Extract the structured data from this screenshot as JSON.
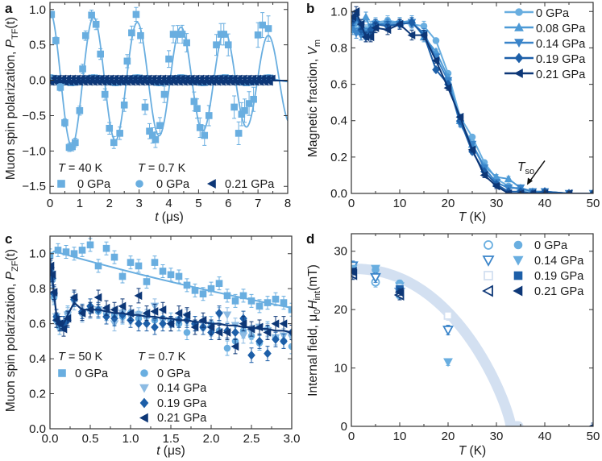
{
  "colors": {
    "p0": "#69aee0",
    "p008": "#4d9ad6",
    "p014": "#3a84c9",
    "p019": "#1d5fa8",
    "p021": "#0d3777",
    "band": "#d3e0f1",
    "axis": "#333333"
  },
  "chart_data": [
    {
      "id": "a",
      "type": "line",
      "panel_label": "a",
      "xlabel": {
        "var": "t",
        "suffix": " (μs)"
      },
      "ylabel": {
        "prefix": "Muon spin polarization, ",
        "var": "P",
        "sub": "TF",
        "suffix": "(t)"
      },
      "xlim": [
        0,
        8
      ],
      "ylim": [
        -1.6,
        1.1
      ],
      "xticks": [
        0,
        1,
        2,
        3,
        4,
        5,
        6,
        7,
        8
      ],
      "xtick_labels": [
        "0",
        "1",
        "2",
        "3",
        "4",
        "5",
        "6",
        "7",
        "8"
      ],
      "yticks": [
        1.0,
        0.5,
        0.0,
        -0.5,
        -1.0,
        -1.5
      ],
      "ytick_labels": [
        "1.0",
        "0.5",
        "0.0",
        "−0.5",
        "−1.0",
        "−1.5"
      ],
      "legend": {
        "group1": "= 40 K",
        "group2": "= 0.7 K",
        "T": "T",
        "items": [
          "0 GPa",
          "0 GPa",
          "0.21 GPa"
        ]
      },
      "series": [
        {
          "name": "T = 40 K, 0 GPa",
          "marker": "square",
          "color": "p0",
          "x": [
            0.05,
            0.2,
            0.35,
            0.5,
            0.65,
            0.75,
            0.85,
            1.0,
            1.1,
            1.2,
            1.4,
            1.55,
            1.7,
            1.85,
            2.0,
            2.15,
            2.35,
            2.5,
            2.6,
            2.75,
            2.9,
            3.05,
            3.2,
            3.35,
            3.45,
            3.55,
            3.7,
            3.85,
            4.0,
            4.15,
            4.3,
            4.45,
            4.6,
            4.85,
            4.95,
            5.05,
            5.2,
            5.35,
            5.6,
            5.75,
            5.85,
            6.0,
            6.2,
            6.35,
            6.45,
            6.55,
            6.7,
            6.85,
            7.0,
            7.15,
            7.35
          ],
          "y": [
            0.93,
            0.56,
            -0.1,
            -0.6,
            -0.95,
            -0.94,
            -0.88,
            -0.43,
            0.16,
            0.63,
            0.92,
            0.79,
            0.37,
            -0.2,
            -0.68,
            -0.88,
            -0.75,
            -0.35,
            0.27,
            0.67,
            0.93,
            0.63,
            -0.38,
            -0.72,
            -0.78,
            -0.84,
            -0.64,
            -0.2,
            0.3,
            0.65,
            0.65,
            0.65,
            0.53,
            -0.3,
            -0.4,
            -0.67,
            -0.78,
            -0.5,
            0.5,
            0.65,
            0.65,
            0.5,
            -0.38,
            -0.75,
            -0.48,
            -0.43,
            -0.33,
            -0.27,
            0.64,
            0.78,
            0.73
          ],
          "fit": {
            "amplitude": 0.97,
            "period": 1.47,
            "decay_rate": 0.058
          }
        },
        {
          "name": "T = 0.7 K, 0 GPa",
          "marker": "circle",
          "color": "p0",
          "model": {
            "amplitude": 0.045,
            "period": 1.47,
            "tmax": 7.5,
            "step": 0.1
          }
        },
        {
          "name": "T = 0.7 K, 0.21 GPa",
          "marker": "tri-left",
          "color": "p021",
          "model": {
            "amplitude": 0.03,
            "period": 0.16,
            "tmax": 7.5,
            "step": 0.08
          }
        }
      ]
    },
    {
      "id": "b",
      "type": "line",
      "panel_label": "b",
      "xlabel": {
        "var": "T",
        "suffix": " (K)"
      },
      "ylabel": {
        "prefix": "Magnetic fraction, ",
        "var": "V",
        "sub": "m",
        "suffix": ""
      },
      "xlim": [
        0,
        50
      ],
      "ylim": [
        0,
        1.05
      ],
      "xticks": [
        0,
        10,
        20,
        30,
        40,
        50
      ],
      "xtick_labels": [
        "0",
        "10",
        "20",
        "30",
        "40",
        "50"
      ],
      "yticks": [
        0,
        0.2,
        0.4,
        0.6,
        0.8,
        1.0
      ],
      "ytick_labels": [
        "0.0",
        "0.2",
        "0.4",
        "0.6",
        "0.8",
        "1.0"
      ],
      "annotation": {
        "var": "T",
        "sub": "so",
        "x": 36,
        "y": 0.02
      },
      "legend": {
        "items": [
          "0 GPa",
          "0.08 GPa",
          "0.14 GPa",
          "0.19 GPa",
          "0.21 GPa"
        ],
        "placement": "top-right"
      },
      "x": [
        0.3,
        1,
        2,
        3,
        4,
        5,
        7.5,
        10,
        12.5,
        15,
        17.5,
        20,
        22.5,
        25,
        27.5,
        30,
        32.5,
        35,
        37.5,
        40,
        45,
        50
      ],
      "series": [
        {
          "name": "0 GPa",
          "marker": "circle",
          "color": "p0",
          "values": [
            0.92,
            0.9,
            0.93,
            0.9,
            0.92,
            0.94,
            0.95,
            0.94,
            0.93,
            0.92,
            0.84,
            0.66,
            0.42,
            0.31,
            0.17,
            0.08,
            0.04,
            0.02,
            0.01,
            0,
            0,
            0
          ]
        },
        {
          "name": "0.08 GPa",
          "marker": "tri-up",
          "color": "p008",
          "values": [
            0.9,
            0.95,
            0.91,
            0.97,
            0.9,
            0.93,
            0.94,
            0.94,
            0.95,
            0.86,
            0.78,
            0.64,
            0.4,
            0.27,
            0.15,
            0.09,
            0.08,
            0.03,
            0.01,
            0.01,
            0,
            0
          ]
        },
        {
          "name": "0.14 GPa",
          "marker": "tri-down",
          "color": "p014",
          "values": [
            0.93,
            0.88,
            0.87,
            0.88,
            0.87,
            0.93,
            0.93,
            0.93,
            0.94,
            0.88,
            0.75,
            0.62,
            0.38,
            0.27,
            0.14,
            0.06,
            0.03,
            0.03,
            0.01,
            0.01,
            0,
            0
          ]
        },
        {
          "name": "0.19 GPa",
          "marker": "diamond",
          "color": "p019",
          "values": [
            0.95,
            0.98,
            0.9,
            0.86,
            0.9,
            0.93,
            0.92,
            0.93,
            0.94,
            0.87,
            0.68,
            0.6,
            0.4,
            0.23,
            0.12,
            0.05,
            0.01,
            0.01,
            0,
            0.01,
            0,
            0
          ]
        },
        {
          "name": "0.21 GPa",
          "marker": "tri-left",
          "color": "p021",
          "values": [
            0.97,
            1.0,
            0.93,
            0.86,
            0.86,
            0.91,
            0.9,
            0.93,
            0.87,
            0.87,
            0.73,
            0.58,
            0.42,
            0.24,
            0.1,
            0.04,
            0,
            0,
            0,
            0,
            0,
            0
          ]
        }
      ]
    },
    {
      "id": "c",
      "type": "scatter",
      "panel_label": "c",
      "xlabel": {
        "var": "t",
        "suffix": " (μs)"
      },
      "ylabel": {
        "prefix": "Muon spin polarization, ",
        "var": "P",
        "sub": "ZF",
        "suffix": "(t)"
      },
      "xlim": [
        0,
        3
      ],
      "ylim": [
        0,
        1.1
      ],
      "xticks": [
        0,
        0.5,
        1,
        1.5,
        2,
        2.5,
        3
      ],
      "xtick_labels": [
        "0.0",
        "0.5",
        "1.0",
        "1.5",
        "2.0",
        "2.5",
        "3.0"
      ],
      "yticks": [
        0,
        0.2,
        0.4,
        0.6,
        0.8,
        1.0
      ],
      "ytick_labels": [
        "0.0",
        "0.2",
        "0.4",
        "0.6",
        "0.8",
        "1.0"
      ],
      "legend": {
        "T": "T",
        "group1": "= 50 K",
        "group2": "= 0.7 K",
        "items": [
          "0 GPa",
          "0 GPa",
          "0.14 GPa",
          "0.19 GPa",
          "0.21 GPa"
        ]
      },
      "series_50K": {
        "name": "T = 50 K, 0 GPa",
        "marker": "square",
        "color": "p0",
        "x": [
          0,
          0.1,
          0.2,
          0.3,
          0.4,
          0.5,
          0.6,
          0.7,
          0.8,
          0.9,
          1.0,
          1.1,
          1.2,
          1.3,
          1.4,
          1.5,
          1.6,
          1.7,
          1.8,
          1.9,
          2.0,
          2.1,
          2.2,
          2.3,
          2.4,
          2.5,
          2.6,
          2.7,
          2.8,
          2.9,
          3.0
        ],
        "y": [
          0.99,
          1.02,
          1.01,
          1.0,
          1.02,
          1.05,
          0.93,
          1.03,
          0.98,
          0.87,
          0.95,
          0.93,
          0.84,
          0.95,
          0.9,
          0.88,
          0.87,
          0.82,
          0.79,
          0.77,
          0.8,
          0.83,
          0.76,
          0.73,
          0.76,
          0.73,
          0.7,
          0.72,
          0.74,
          0.72,
          0.68
        ],
        "fit_decay_rate": 0.13
      },
      "x_07K": [
        0.01,
        0.03,
        0.05,
        0.08,
        0.12,
        0.17,
        0.22,
        0.3,
        0.4,
        0.5,
        0.6,
        0.7,
        0.8,
        0.9,
        1.0,
        1.1,
        1.2,
        1.3,
        1.4,
        1.5,
        1.6,
        1.7,
        1.8,
        1.9,
        2.0,
        2.1,
        2.2,
        2.3,
        2.4,
        2.5,
        2.6,
        2.7,
        2.8,
        2.9,
        3.0
      ],
      "series": [
        {
          "name": "0 GPa",
          "marker": "circle",
          "color": "p0",
          "values": [
            0.9,
            0.85,
            0.75,
            0.62,
            0.58,
            0.6,
            0.66,
            0.74,
            0.66,
            0.68,
            0.67,
            0.66,
            0.65,
            0.64,
            0.66,
            0.63,
            0.64,
            0.62,
            0.63,
            0.62,
            0.6,
            0.55,
            0.6,
            0.58,
            0.6,
            0.56,
            0.46,
            0.5,
            0.56,
            0.53,
            0.49,
            0.57,
            0.52,
            0.5,
            0.47
          ]
        },
        {
          "name": "0.14 GPa",
          "marker": "tri-down",
          "color": "p014",
          "light": true,
          "values": [
            0.88,
            0.84,
            0.76,
            0.64,
            0.6,
            0.6,
            0.65,
            0.72,
            0.65,
            0.67,
            0.68,
            0.66,
            0.6,
            0.66,
            0.64,
            0.65,
            0.63,
            0.7,
            0.62,
            0.6,
            0.62,
            0.64,
            0.58,
            0.6,
            0.57,
            0.65,
            0.65,
            0.59,
            0.53,
            0.55,
            0.58,
            0.56,
            0.52,
            0.53,
            0.52
          ]
        },
        {
          "name": "0.19 GPa",
          "marker": "diamond",
          "color": "p019",
          "values": [
            0.92,
            0.86,
            0.77,
            0.64,
            0.6,
            0.6,
            0.62,
            0.74,
            0.67,
            0.7,
            0.68,
            0.64,
            0.63,
            0.65,
            0.62,
            0.6,
            0.6,
            0.58,
            0.6,
            0.6,
            0.62,
            0.62,
            0.6,
            0.58,
            0.55,
            0.66,
            0.56,
            0.55,
            0.63,
            0.42,
            0.5,
            0.43,
            0.51,
            0.5,
            0.55
          ]
        },
        {
          "name": "0.21 GPa",
          "marker": "tri-left",
          "color": "p021",
          "values": [
            0.93,
            0.88,
            0.78,
            0.62,
            0.6,
            0.57,
            0.63,
            0.75,
            0.66,
            0.68,
            0.75,
            0.69,
            0.68,
            0.7,
            0.66,
            0.76,
            0.66,
            0.67,
            0.68,
            0.6,
            0.66,
            0.65,
            0.58,
            0.62,
            0.58,
            0.55,
            0.55,
            0.47,
            0.6,
            0.57,
            0.58,
            0.55,
            0.6,
            0.6,
            0.55
          ]
        }
      ],
      "fit_07K": [
        0.92,
        0.86,
        0.77,
        0.65,
        0.6,
        0.6,
        0.65,
        0.72,
        0.68,
        0.68,
        0.68,
        0.67,
        0.66,
        0.66,
        0.65,
        0.65,
        0.64,
        0.64,
        0.63,
        0.63,
        0.62,
        0.62,
        0.61,
        0.61,
        0.6,
        0.6,
        0.59,
        0.59,
        0.58,
        0.58,
        0.57,
        0.57,
        0.56,
        0.56,
        0.55
      ]
    },
    {
      "id": "d",
      "type": "scatter",
      "panel_label": "d",
      "xlabel": {
        "var": "T",
        "suffix": " (K)"
      },
      "ylabel": {
        "prefix": "Internal field, μ",
        "sub0": "0",
        "var": "H",
        "sub": "int",
        "suffix": "(mT)"
      },
      "xlim": [
        0,
        50
      ],
      "ylim": [
        0,
        33
      ],
      "xticks": [
        0,
        10,
        20,
        30,
        40,
        50
      ],
      "xtick_labels": [
        "0",
        "10",
        "20",
        "30",
        "40",
        "50"
      ],
      "yticks": [
        0,
        10,
        20,
        30
      ],
      "ytick_labels": [
        "0",
        "10",
        "20",
        "30"
      ],
      "band": {
        "H0": 27,
        "Tc": 33,
        "alpha": 2.2,
        "beta": 0.8
      },
      "legend": {
        "items": [
          "0 GPa",
          "0.14 GPa",
          "0.19 GPa",
          "0.21 GPa"
        ],
        "placement": "top-right"
      },
      "series": [
        {
          "name": "0 GPa (open)",
          "marker": "circle",
          "open": true,
          "color": "p0",
          "x": [
            0.3,
            5,
            10
          ],
          "y": [
            27,
            24.7,
            22.5
          ]
        },
        {
          "name": "0 GPa (filled)",
          "marker": "circle",
          "color": "p0",
          "x": [
            0.3,
            5,
            10
          ],
          "y": [
            26.5,
            26.8,
            24.5
          ]
        },
        {
          "name": "0.14 GPa (open)",
          "marker": "tri-down",
          "open": true,
          "color": "p014",
          "x": [
            0.3,
            5,
            10,
            20
          ],
          "y": [
            27.5,
            25.5,
            23,
            16.5
          ]
        },
        {
          "name": "0.14 GPa (filled)",
          "marker": "tri-down",
          "color": "p0",
          "x": [
            0.3,
            5,
            10,
            20
          ],
          "y": [
            27,
            27,
            24,
            11
          ]
        },
        {
          "name": "0.19 GPa (open)",
          "marker": "square",
          "open": true,
          "color": "band",
          "x": [
            0.3,
            10,
            20
          ],
          "y": [
            26,
            23.5,
            19
          ]
        },
        {
          "name": "0.19 GPa (filled)",
          "marker": "square",
          "color": "p019",
          "x": [
            0.3,
            10
          ],
          "y": [
            26.5,
            23.5
          ]
        },
        {
          "name": "0.21 GPa (open)",
          "marker": "tri-left",
          "open": true,
          "color": "p021",
          "x": [
            0.3,
            10
          ],
          "y": [
            26,
            22.5
          ]
        },
        {
          "name": "0.21 GPa (filled)",
          "marker": "tri-left",
          "color": "p021",
          "x": [
            0.3,
            10,
            50
          ],
          "y": [
            26.5,
            23,
            0
          ]
        }
      ]
    }
  ]
}
